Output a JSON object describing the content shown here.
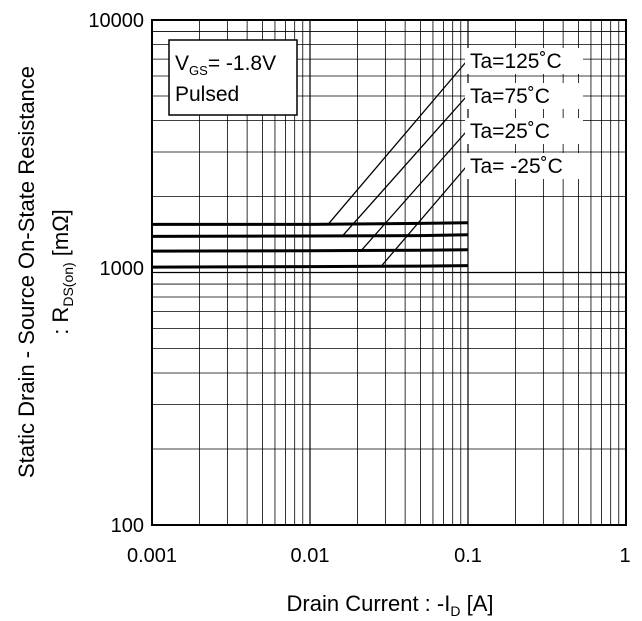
{
  "chart_data": {
    "type": "line",
    "x_scale": "log",
    "y_scale": "log",
    "xlim": [
      0.001,
      1
    ],
    "ylim": [
      100,
      10000
    ],
    "grid": true,
    "x_ticks": [
      "0.001",
      "0.01",
      "0.1",
      "1"
    ],
    "y_ticks": [
      "10000",
      "1000",
      "100"
    ],
    "xlabel": {
      "main": "Drain Current : -I",
      "sub": "D",
      "unit": " [A]"
    },
    "ylabel": {
      "line1": "Static Drain - Source On-State Resistance",
      "line2_main": ": R",
      "line2_sub": "DS(on)",
      "line2_unit": " [mΩ]"
    },
    "condition_box": {
      "vgs_main": "V",
      "vgs_sub": "GS",
      "vgs_value": "= -1.8V",
      "pulsed": "Pulsed"
    },
    "series": [
      {
        "name": "Ta=125˚C",
        "x": [
          0.001,
          0.01,
          0.05,
          0.1
        ],
        "y": [
          1550,
          1550,
          1565,
          1575
        ]
      },
      {
        "name": "Ta=75˚C",
        "x": [
          0.001,
          0.01,
          0.05,
          0.1
        ],
        "y": [
          1390,
          1395,
          1400,
          1410
        ]
      },
      {
        "name": "Ta=25˚C",
        "x": [
          0.001,
          0.01,
          0.05,
          0.1
        ],
        "y": [
          1215,
          1220,
          1225,
          1230
        ]
      },
      {
        "name": "Ta= -25˚C",
        "x": [
          0.001,
          0.01,
          0.05,
          0.1
        ],
        "y": [
          1050,
          1055,
          1060,
          1065
        ]
      }
    ]
  }
}
